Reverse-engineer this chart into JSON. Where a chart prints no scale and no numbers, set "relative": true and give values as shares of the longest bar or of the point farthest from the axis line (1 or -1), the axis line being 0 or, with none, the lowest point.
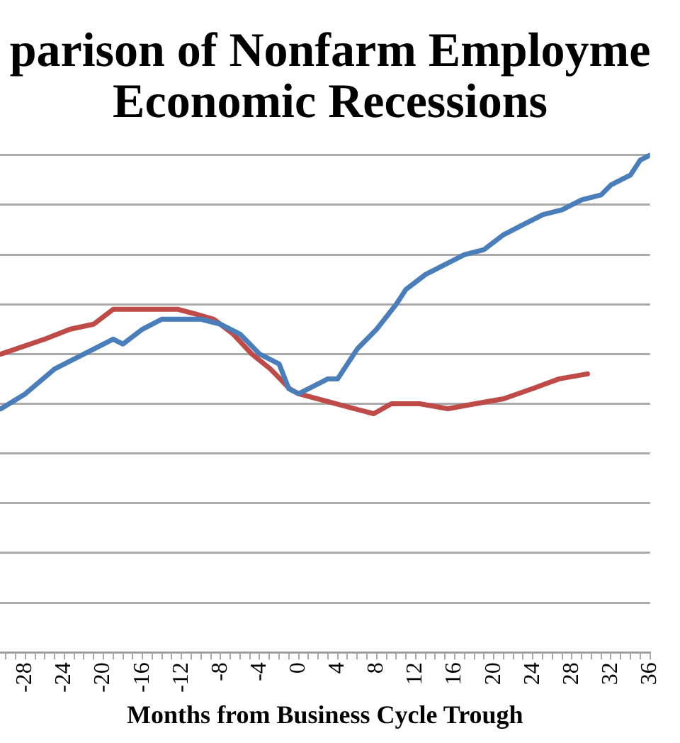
{
  "chart_data": {
    "type": "line",
    "title": "parison of Nonfarm Employme\nEconomic Recessions",
    "xlabel": "Months from Business Cycle Trough",
    "relative": true,
    "grid": "y",
    "legend": false,
    "marker": "none",
    "line_style": "solid",
    "xlim": [
      -30.6,
      36
    ],
    "xticks": [
      {
        "value": -30,
        "label": null
      },
      {
        "value": -29,
        "label": null
      },
      -28,
      {
        "value": -27,
        "label": null
      },
      {
        "value": -26,
        "label": null
      },
      {
        "value": -25,
        "label": null
      },
      -24,
      {
        "value": -23,
        "label": null
      },
      {
        "value": -22,
        "label": null
      },
      {
        "value": -21,
        "label": null
      },
      -20,
      {
        "value": -19,
        "label": null
      },
      {
        "value": -18,
        "label": null
      },
      {
        "value": -17,
        "label": null
      },
      -16,
      {
        "value": -15,
        "label": null
      },
      {
        "value": -14,
        "label": null
      },
      {
        "value": -13,
        "label": null
      },
      -12,
      {
        "value": -11,
        "label": null
      },
      {
        "value": -10,
        "label": null
      },
      {
        "value": -9,
        "label": null
      },
      -8,
      {
        "value": -7,
        "label": null
      },
      {
        "value": -6,
        "label": null
      },
      {
        "value": -5,
        "label": null
      },
      -4,
      {
        "value": -3,
        "label": null
      },
      {
        "value": -2,
        "label": null
      },
      {
        "value": -1,
        "label": null
      },
      0,
      {
        "value": 1,
        "label": null
      },
      {
        "value": 2,
        "label": null
      },
      {
        "value": 3,
        "label": null
      },
      4,
      {
        "value": 5,
        "label": null
      },
      {
        "value": 6,
        "label": null
      },
      {
        "value": 7,
        "label": null
      },
      8,
      {
        "value": 9,
        "label": null
      },
      {
        "value": 10,
        "label": null
      },
      {
        "value": 11,
        "label": null
      },
      12,
      {
        "value": 13,
        "label": null
      },
      {
        "value": 14,
        "label": null
      },
      {
        "value": 15,
        "label": null
      },
      16,
      {
        "value": 17,
        "label": null
      },
      {
        "value": 18,
        "label": null
      },
      {
        "value": 19,
        "label": null
      },
      20,
      {
        "value": 21,
        "label": null
      },
      {
        "value": 22,
        "label": null
      },
      {
        "value": 23,
        "label": null
      },
      24,
      {
        "value": 25,
        "label": null
      },
      {
        "value": 26,
        "label": null
      },
      {
        "value": 27,
        "label": null
      },
      28,
      {
        "value": 29,
        "label": null
      },
      {
        "value": 30,
        "label": null
      },
      {
        "value": 31,
        "label": null
      },
      32,
      {
        "value": 33,
        "label": null
      },
      {
        "value": 34,
        "label": null
      },
      {
        "value": 35,
        "label": null
      },
      36
    ],
    "series": [
      {
        "color": "#4a7ebb",
        "x": [
          -30.5,
          -28,
          -25,
          -22,
          -19,
          -18,
          -16,
          -14,
          -12,
          -10,
          -8,
          -6,
          -4,
          -2,
          -1,
          0,
          3,
          4,
          6,
          8,
          10,
          11,
          13,
          15,
          17,
          19,
          21,
          23,
          25,
          27,
          29,
          31,
          32,
          34,
          35,
          36
        ],
        "values": [
          0.49,
          0.52,
          0.57,
          0.6,
          0.63,
          0.62,
          0.65,
          0.67,
          0.67,
          0.67,
          0.66,
          0.64,
          0.6,
          0.58,
          0.53,
          0.52,
          0.55,
          0.55,
          0.61,
          0.65,
          0.7,
          0.73,
          0.76,
          0.78,
          0.8,
          0.81,
          0.84,
          0.86,
          0.88,
          0.89,
          0.91,
          0.92,
          0.94,
          0.96,
          0.99,
          1
        ]
      },
      {
        "color": "#be4b48",
        "x": [
          -30.5,
          -26,
          -23.4,
          -21,
          -19,
          -18,
          -16.3,
          -14.4,
          -12.4,
          -10.5,
          -8.7,
          -6.7,
          -4.8,
          -2.9,
          -0.9,
          0,
          1.9,
          3.8,
          5.7,
          7.7,
          9.5,
          10.7,
          12.4,
          15.3,
          18.1,
          21,
          23.9,
          26.7,
          29.6
        ],
        "values": [
          0.6,
          0.63,
          0.65,
          0.66,
          0.69,
          0.69,
          0.69,
          0.69,
          0.69,
          0.68,
          0.67,
          0.64,
          0.6,
          0.57,
          0.53,
          0.52,
          0.51,
          0.5,
          0.49,
          0.48,
          0.5,
          0.5,
          0.5,
          0.49,
          0.5,
          0.51,
          0.53,
          0.55,
          0.56
        ]
      }
    ]
  }
}
